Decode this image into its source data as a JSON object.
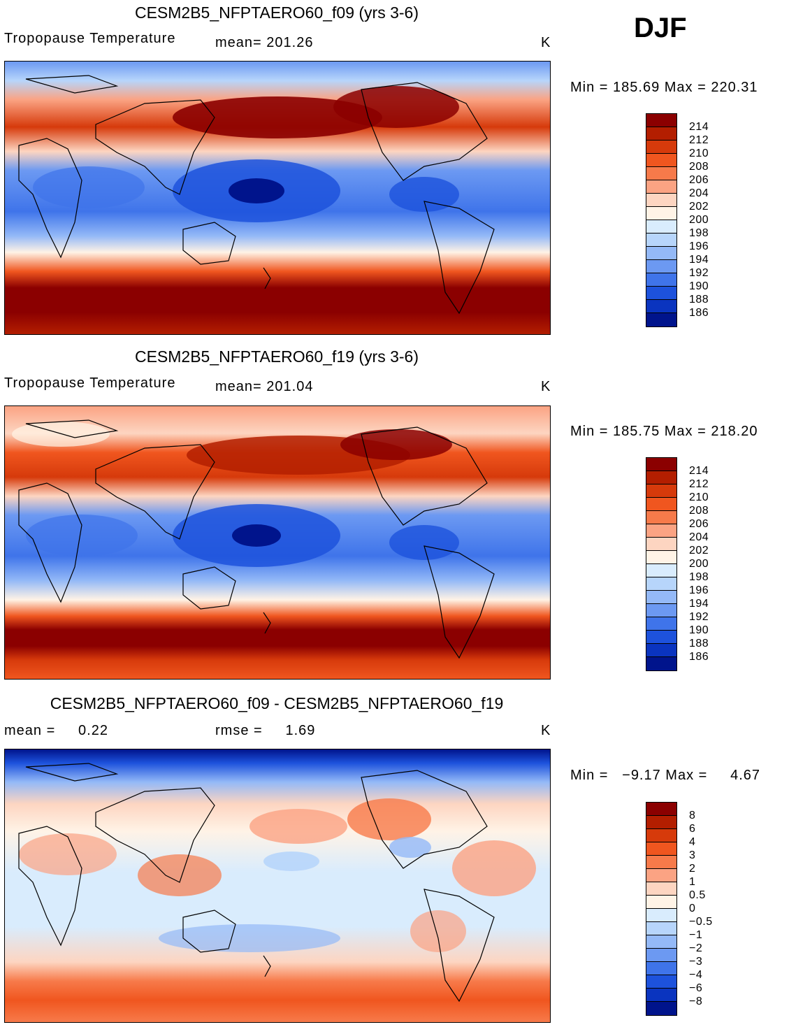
{
  "season": "DJF",
  "panels": [
    {
      "title": "CESM2B5_NFPTAERO60_f09 (yrs 3-6)",
      "variable": "Tropopause Temperature",
      "stat1": "mean= 201.26",
      "stat2": "",
      "units": "K",
      "minmax": "Min = 185.69 Max = 220.31",
      "map_label": "Tropopause temperature map f09",
      "colorbar": {
        "colors": [
          "#8b0000",
          "#b31e00",
          "#d63a0b",
          "#f0561f",
          "#f77a4a",
          "#fba383",
          "#fdd5c1",
          "#fff3e6",
          "#d9ecfd",
          "#b7d5fb",
          "#94b9f7",
          "#6c99f2",
          "#3f74ea",
          "#1d52dc",
          "#0a34bf",
          "#00148c"
        ],
        "labels": [
          "214",
          "212",
          "210",
          "208",
          "206",
          "204",
          "202",
          "200",
          "198",
          "196",
          "194",
          "192",
          "190",
          "188",
          "186"
        ]
      }
    },
    {
      "title": "CESM2B5_NFPTAERO60_f19 (yrs 3-6)",
      "variable": "Tropopause Temperature",
      "stat1": "mean= 201.04",
      "stat2": "",
      "units": "K",
      "minmax": "Min = 185.75 Max = 218.20",
      "map_label": "Tropopause temperature map f19",
      "colorbar": {
        "colors": [
          "#8b0000",
          "#b31e00",
          "#d63a0b",
          "#f0561f",
          "#f77a4a",
          "#fba383",
          "#fdd5c1",
          "#fff3e6",
          "#d9ecfd",
          "#b7d5fb",
          "#94b9f7",
          "#6c99f2",
          "#3f74ea",
          "#1d52dc",
          "#0a34bf",
          "#00148c"
        ],
        "labels": [
          "214",
          "212",
          "210",
          "208",
          "206",
          "204",
          "202",
          "200",
          "198",
          "196",
          "194",
          "192",
          "190",
          "188",
          "186"
        ]
      }
    },
    {
      "title": "CESM2B5_NFPTAERO60_f09 - CESM2B5_NFPTAERO60_f19",
      "variable": "mean =     0.22",
      "stat1": "rmse =     1.69",
      "stat2": "",
      "units": "K",
      "minmax": "Min =   −9.17 Max =     4.67",
      "map_label": "Difference map f09 minus f19",
      "colorbar": {
        "colors": [
          "#8b0000",
          "#b31e00",
          "#d63a0b",
          "#f0561f",
          "#f77a4a",
          "#fba383",
          "#fdd5c1",
          "#fff3e6",
          "#d9ecfd",
          "#b7d5fb",
          "#94b9f7",
          "#6c99f2",
          "#3f74ea",
          "#1d52dc",
          "#0a34bf",
          "#00148c"
        ],
        "labels": [
          "8",
          "6",
          "4",
          "3",
          "2",
          "1",
          "0.5",
          "0",
          "−0.5",
          "−1",
          "−2",
          "−3",
          "−4",
          "−6",
          "−8"
        ]
      }
    }
  ]
}
